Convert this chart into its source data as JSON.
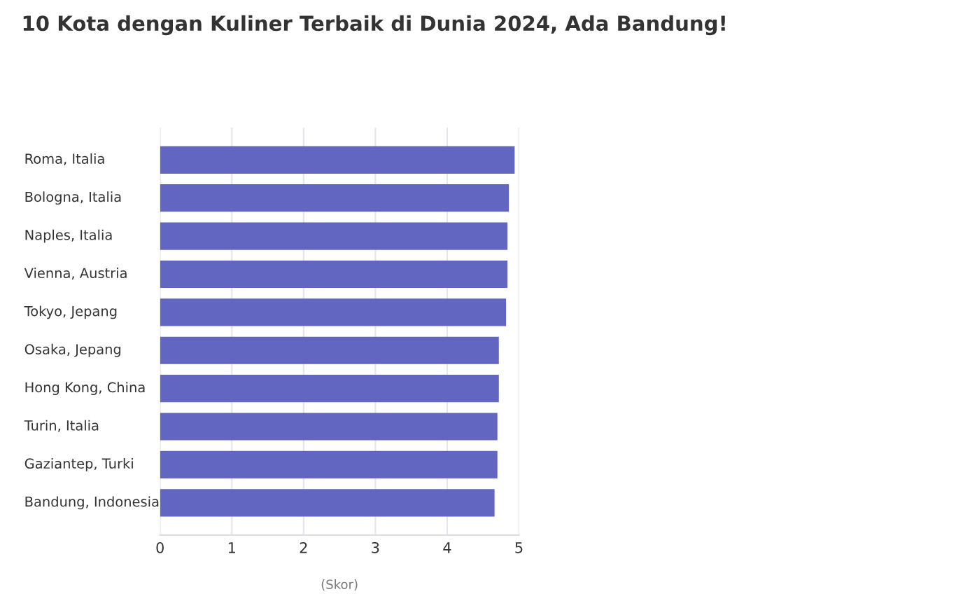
{
  "chart_data": {
    "type": "bar",
    "orientation": "horizontal",
    "title": "10 Kota dengan Kuliner Terbaik di Dunia 2024, Ada Bandung!",
    "xlabel": "(Skor)",
    "categories": [
      "Roma, Italia",
      "Bologna, Italia",
      "Naples, Italia",
      "Vienna, Austria",
      "Tokyo, Jepang",
      "Osaka, Jepang",
      "Hong Kong, China",
      "Turin, Italia",
      "Gaziantep, Turki",
      "Bandung, Indonesia"
    ],
    "values": [
      4.94,
      4.86,
      4.84,
      4.84,
      4.82,
      4.72,
      4.72,
      4.7,
      4.7,
      4.66
    ],
    "color": "#6366c1",
    "xlim": [
      0,
      5
    ],
    "xticks": [
      0,
      1,
      2,
      3,
      4,
      5
    ],
    "grid": "x"
  }
}
